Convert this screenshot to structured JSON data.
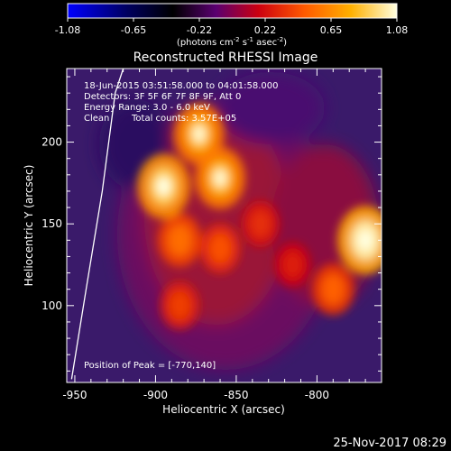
{
  "colorbar": {
    "tick_labels": [
      "-1.08",
      "-0.65",
      "-0.22",
      "0.22",
      "0.65",
      "1.08"
    ],
    "units_base": "(photons cm",
    "units_exp1": "-2",
    "units_mid": " s",
    "units_exp2": "-1",
    "units_tail": " asec",
    "units_exp3": "-2",
    "units_close": ")",
    "range": [
      -1.08,
      1.08
    ],
    "colormap": [
      "#0000ff",
      "#000000",
      "#6a0080",
      "#cc0000",
      "#ff5000",
      "#ffa000",
      "#ffff80",
      "#ffffff"
    ]
  },
  "header": {
    "title": "Reconstructed RHESSI Image",
    "time_range": "18-Jun-2015 03:51:58.000 to 04:01:58.000",
    "detectors": "Detectors: 3F 5F 6F 7F 8F 9F, Att 0",
    "energy_range": "Energy Range: 3.0 - 6.0 keV",
    "clean_label": "Clean",
    "total_counts": "Total counts: 3.57E+05",
    "peak_position": "Position of Peak = [-770,140]"
  },
  "footer": {
    "timestamp": "25-Nov-2017 08:29"
  },
  "chart_data": {
    "type": "heatmap",
    "title": "Reconstructed RHESSI Image",
    "xlabel": "Heliocentric X (arcsec)",
    "ylabel": "Heliocentric Y (arcsec)",
    "xlim": [
      -955,
      -760
    ],
    "ylim": [
      53,
      245
    ],
    "x_ticks": [
      -950,
      -900,
      -850,
      -800
    ],
    "y_ticks": [
      100,
      150,
      200
    ],
    "x_tick_labels": [
      "-950",
      "-900",
      "-850",
      "-800"
    ],
    "y_tick_labels": [
      "100",
      "150",
      "200"
    ],
    "value_range": [
      -1.08,
      1.08
    ],
    "peak": {
      "x": -770,
      "y": 140
    },
    "sources": [
      {
        "x": -895,
        "y": 173,
        "value": 0.9
      },
      {
        "x": -873,
        "y": 205,
        "value": 0.8
      },
      {
        "x": -860,
        "y": 178,
        "value": 0.8
      },
      {
        "x": -885,
        "y": 140,
        "value": 0.55
      },
      {
        "x": -860,
        "y": 135,
        "value": 0.45
      },
      {
        "x": -885,
        "y": 100,
        "value": 0.4
      },
      {
        "x": -835,
        "y": 150,
        "value": 0.35
      },
      {
        "x": -815,
        "y": 125,
        "value": 0.3
      },
      {
        "x": -790,
        "y": 110,
        "value": 0.5
      },
      {
        "x": -770,
        "y": 140,
        "value": 1.0
      }
    ],
    "limb_curve": [
      {
        "x": -952,
        "y": 55
      },
      {
        "x": -943,
        "y": 110
      },
      {
        "x": -933,
        "y": 170
      },
      {
        "x": -925,
        "y": 230
      },
      {
        "x": -920,
        "y": 245
      }
    ]
  }
}
